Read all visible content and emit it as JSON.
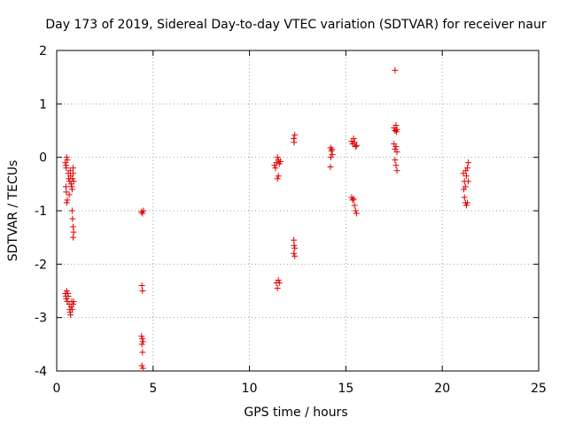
{
  "chart_data": {
    "type": "scatter",
    "title": "Day 173 of 2019, Sidereal Day-to-day VTEC variation (SDTVAR) for receiver naur",
    "xlabel": "GPS time / hours",
    "ylabel": "SDTVAR / TECUs",
    "xlim": [
      0,
      25
    ],
    "ylim": [
      -4,
      2
    ],
    "xticks": [
      "0",
      "5",
      "10",
      "15",
      "20",
      "25"
    ],
    "yticks": [
      "-4",
      "-3",
      "-2",
      "-1",
      "0",
      "1",
      "2"
    ],
    "grid": true,
    "marker": "+",
    "color": "#e00000",
    "series": [
      {
        "name": "SDTVAR",
        "points": [
          [
            0.45,
            -0.1
          ],
          [
            0.48,
            -0.15
          ],
          [
            0.5,
            -0.2
          ],
          [
            0.52,
            0.0
          ],
          [
            0.55,
            -0.05
          ],
          [
            0.48,
            -0.55
          ],
          [
            0.5,
            -0.65
          ],
          [
            0.55,
            -0.8
          ],
          [
            0.52,
            -0.85
          ],
          [
            0.6,
            -0.3
          ],
          [
            0.62,
            -0.4
          ],
          [
            0.65,
            -0.7
          ],
          [
            0.68,
            -0.45
          ],
          [
            0.7,
            -0.25
          ],
          [
            0.72,
            -0.35
          ],
          [
            0.75,
            -0.5
          ],
          [
            0.78,
            -0.55
          ],
          [
            0.8,
            -0.6
          ],
          [
            0.82,
            -0.4
          ],
          [
            0.85,
            -0.3
          ],
          [
            0.85,
            -0.2
          ],
          [
            0.88,
            -0.45
          ],
          [
            0.8,
            -1.0
          ],
          [
            0.82,
            -1.15
          ],
          [
            0.85,
            -1.3
          ],
          [
            0.85,
            -1.5
          ],
          [
            0.88,
            -1.4
          ],
          [
            0.45,
            -2.55
          ],
          [
            0.48,
            -2.6
          ],
          [
            0.5,
            -2.65
          ],
          [
            0.52,
            -2.5
          ],
          [
            0.55,
            -2.7
          ],
          [
            0.58,
            -2.55
          ],
          [
            0.6,
            -2.6
          ],
          [
            0.65,
            -2.75
          ],
          [
            0.68,
            -2.85
          ],
          [
            0.7,
            -2.9
          ],
          [
            0.72,
            -2.95
          ],
          [
            0.75,
            -2.8
          ],
          [
            0.78,
            -2.7
          ],
          [
            0.8,
            -2.85
          ],
          [
            0.85,
            -2.75
          ],
          [
            0.88,
            -2.7
          ],
          [
            4.4,
            -1.02
          ],
          [
            4.45,
            -1.05
          ],
          [
            4.5,
            -1.0
          ],
          [
            4.42,
            -2.4
          ],
          [
            4.45,
            -2.5
          ],
          [
            4.4,
            -3.35
          ],
          [
            4.45,
            -3.4
          ],
          [
            4.48,
            -3.45
          ],
          [
            4.42,
            -3.5
          ],
          [
            4.45,
            -3.65
          ],
          [
            4.42,
            -3.9
          ],
          [
            4.47,
            -3.95
          ],
          [
            11.3,
            -0.15
          ],
          [
            11.35,
            -0.2
          ],
          [
            11.4,
            -0.1
          ],
          [
            11.45,
            0.0
          ],
          [
            11.5,
            -0.05
          ],
          [
            11.55,
            -0.12
          ],
          [
            11.6,
            -0.08
          ],
          [
            11.45,
            -0.4
          ],
          [
            11.5,
            -0.35
          ],
          [
            11.4,
            -2.35
          ],
          [
            11.45,
            -2.45
          ],
          [
            11.5,
            -2.3
          ],
          [
            11.55,
            -2.35
          ],
          [
            12.3,
            0.35
          ],
          [
            12.32,
            0.28
          ],
          [
            12.35,
            0.42
          ],
          [
            12.3,
            -1.55
          ],
          [
            12.32,
            -1.65
          ],
          [
            12.35,
            -1.7
          ],
          [
            12.3,
            -1.8
          ],
          [
            12.35,
            -1.85
          ],
          [
            14.2,
            0.18
          ],
          [
            14.25,
            0.12
          ],
          [
            14.3,
            0.05
          ],
          [
            14.22,
            0.0
          ],
          [
            14.28,
            0.15
          ],
          [
            14.2,
            -0.18
          ],
          [
            15.3,
            0.3
          ],
          [
            15.35,
            0.25
          ],
          [
            15.4,
            0.35
          ],
          [
            15.45,
            0.28
          ],
          [
            15.5,
            0.2
          ],
          [
            15.55,
            0.22
          ],
          [
            15.3,
            -0.75
          ],
          [
            15.35,
            -0.8
          ],
          [
            15.4,
            -0.78
          ],
          [
            15.45,
            -0.9
          ],
          [
            15.5,
            -1.0
          ],
          [
            15.55,
            -1.05
          ],
          [
            17.55,
            1.63
          ],
          [
            17.5,
            0.55
          ],
          [
            17.55,
            0.5
          ],
          [
            17.6,
            0.6
          ],
          [
            17.62,
            0.48
          ],
          [
            17.65,
            0.52
          ],
          [
            17.5,
            0.25
          ],
          [
            17.55,
            0.15
          ],
          [
            17.6,
            0.2
          ],
          [
            17.65,
            0.1
          ],
          [
            17.55,
            -0.05
          ],
          [
            17.6,
            -0.15
          ],
          [
            17.65,
            -0.25
          ],
          [
            21.1,
            -0.3
          ],
          [
            21.15,
            -0.45
          ],
          [
            21.2,
            -0.55
          ],
          [
            21.25,
            -0.35
          ],
          [
            21.3,
            -0.2
          ],
          [
            21.35,
            -0.1
          ],
          [
            21.12,
            -0.6
          ],
          [
            21.15,
            -0.75
          ],
          [
            21.2,
            -0.85
          ],
          [
            21.25,
            -0.9
          ],
          [
            21.3,
            -0.85
          ],
          [
            21.35,
            -0.45
          ],
          [
            21.22,
            -0.25
          ]
        ]
      }
    ]
  }
}
